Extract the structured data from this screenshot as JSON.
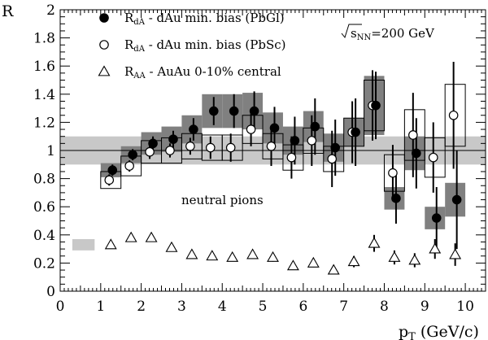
{
  "chart_data": {
    "type": "scatter",
    "xlabel": "p",
    "xlabel_sub": "T",
    "xlabel_unit": " (GeV/c)",
    "ylabel": "R",
    "xlim": [
      0,
      10.5
    ],
    "ylim": [
      0,
      2
    ],
    "x_ticks": [
      "0",
      "1",
      "2",
      "3",
      "4",
      "5",
      "6",
      "7",
      "8",
      "9",
      "10"
    ],
    "y_ticks": [
      "0",
      "0.2",
      "0.4",
      "0.6",
      "0.8",
      "1",
      "1.2",
      "1.4",
      "1.6",
      "1.8",
      "2"
    ],
    "grid": false,
    "legend_position": "top-left",
    "reference_line": 1,
    "normalization_band": {
      "y": 1,
      "low": 0.9,
      "high": 1.1,
      "color": "#c8c8c8"
    },
    "auau_band": {
      "y": 0.33,
      "low": 0.29,
      "high": 0.37,
      "color": "#c8c8c8"
    },
    "annotation_energy": "=200 GeV",
    "annotation_energy_symbol": "s",
    "annotation_energy_sub": "NN",
    "annotation_label": "neutral pions",
    "series": [
      {
        "name_main": "R",
        "name_sub": "dA",
        "name_rest": " - dAu min. bias (PbGl)",
        "marker": "filled-circle",
        "color": "#000000",
        "sys_color": "#808080",
        "x": [
          1.25,
          1.75,
          2.25,
          2.75,
          3.25,
          3.75,
          4.25,
          4.75,
          5.25,
          5.75,
          6.25,
          6.75,
          7.25,
          7.75,
          8.25,
          8.75,
          9.25,
          9.75
        ],
        "values": [
          0.86,
          0.97,
          1.05,
          1.08,
          1.15,
          1.28,
          1.28,
          1.28,
          1.16,
          1.07,
          1.17,
          1.02,
          1.13,
          1.32,
          0.66,
          0.98,
          0.52,
          0.65
        ],
        "stat": [
          0.04,
          0.04,
          0.05,
          0.06,
          0.08,
          0.1,
          0.12,
          0.14,
          0.15,
          0.17,
          0.2,
          0.2,
          0.24,
          0.24,
          0.18,
          0.25,
          0.22,
          0.35
        ],
        "sys": [
          0.05,
          0.06,
          0.08,
          0.09,
          0.1,
          0.12,
          0.12,
          0.13,
          0.11,
          0.1,
          0.11,
          0.1,
          0.1,
          0.21,
          0.08,
          0.12,
          0.08,
          0.12
        ]
      },
      {
        "name_main": "R",
        "name_sub": "dA",
        "name_rest": " - dAu min. bias (PbSc)",
        "marker": "open-circle",
        "color": "#000000",
        "x": [
          1.25,
          1.75,
          2.25,
          2.75,
          3.25,
          3.75,
          4.25,
          4.75,
          5.25,
          5.75,
          6.25,
          6.75,
          7.25,
          7.75,
          8.25,
          8.75,
          9.25,
          9.75
        ],
        "values": [
          0.79,
          0.89,
          0.99,
          1.0,
          1.03,
          1.02,
          1.02,
          1.15,
          1.03,
          0.95,
          1.07,
          0.94,
          1.13,
          1.32,
          0.84,
          1.11,
          0.95,
          1.25
        ],
        "stat": [
          0.04,
          0.04,
          0.05,
          0.05,
          0.06,
          0.08,
          0.1,
          0.12,
          0.14,
          0.15,
          0.18,
          0.2,
          0.22,
          0.25,
          0.2,
          0.3,
          0.25,
          0.38
        ],
        "sys": [
          0.06,
          0.07,
          0.08,
          0.09,
          0.09,
          0.09,
          0.09,
          0.1,
          0.09,
          0.09,
          0.09,
          0.09,
          0.1,
          0.18,
          0.13,
          0.18,
          0.14,
          0.22
        ]
      },
      {
        "name_main": "R",
        "name_sub": "AA",
        "name_rest": " - AuAu 0-10% central",
        "marker": "open-triangle",
        "color": "#000000",
        "x": [
          1.25,
          1.75,
          2.25,
          2.75,
          3.25,
          3.75,
          4.25,
          4.75,
          5.25,
          5.75,
          6.25,
          6.75,
          7.25,
          7.75,
          8.25,
          8.75,
          9.25,
          9.75
        ],
        "values": [
          0.33,
          0.38,
          0.38,
          0.31,
          0.26,
          0.25,
          0.24,
          0.26,
          0.24,
          0.18,
          0.2,
          0.15,
          0.21,
          0.34,
          0.24,
          0.22,
          0.3,
          0.26
        ],
        "stat": [
          0.02,
          0.02,
          0.02,
          0.02,
          0.02,
          0.02,
          0.02,
          0.02,
          0.03,
          0.02,
          0.03,
          0.03,
          0.04,
          0.06,
          0.05,
          0.05,
          0.07,
          0.08
        ]
      }
    ]
  }
}
